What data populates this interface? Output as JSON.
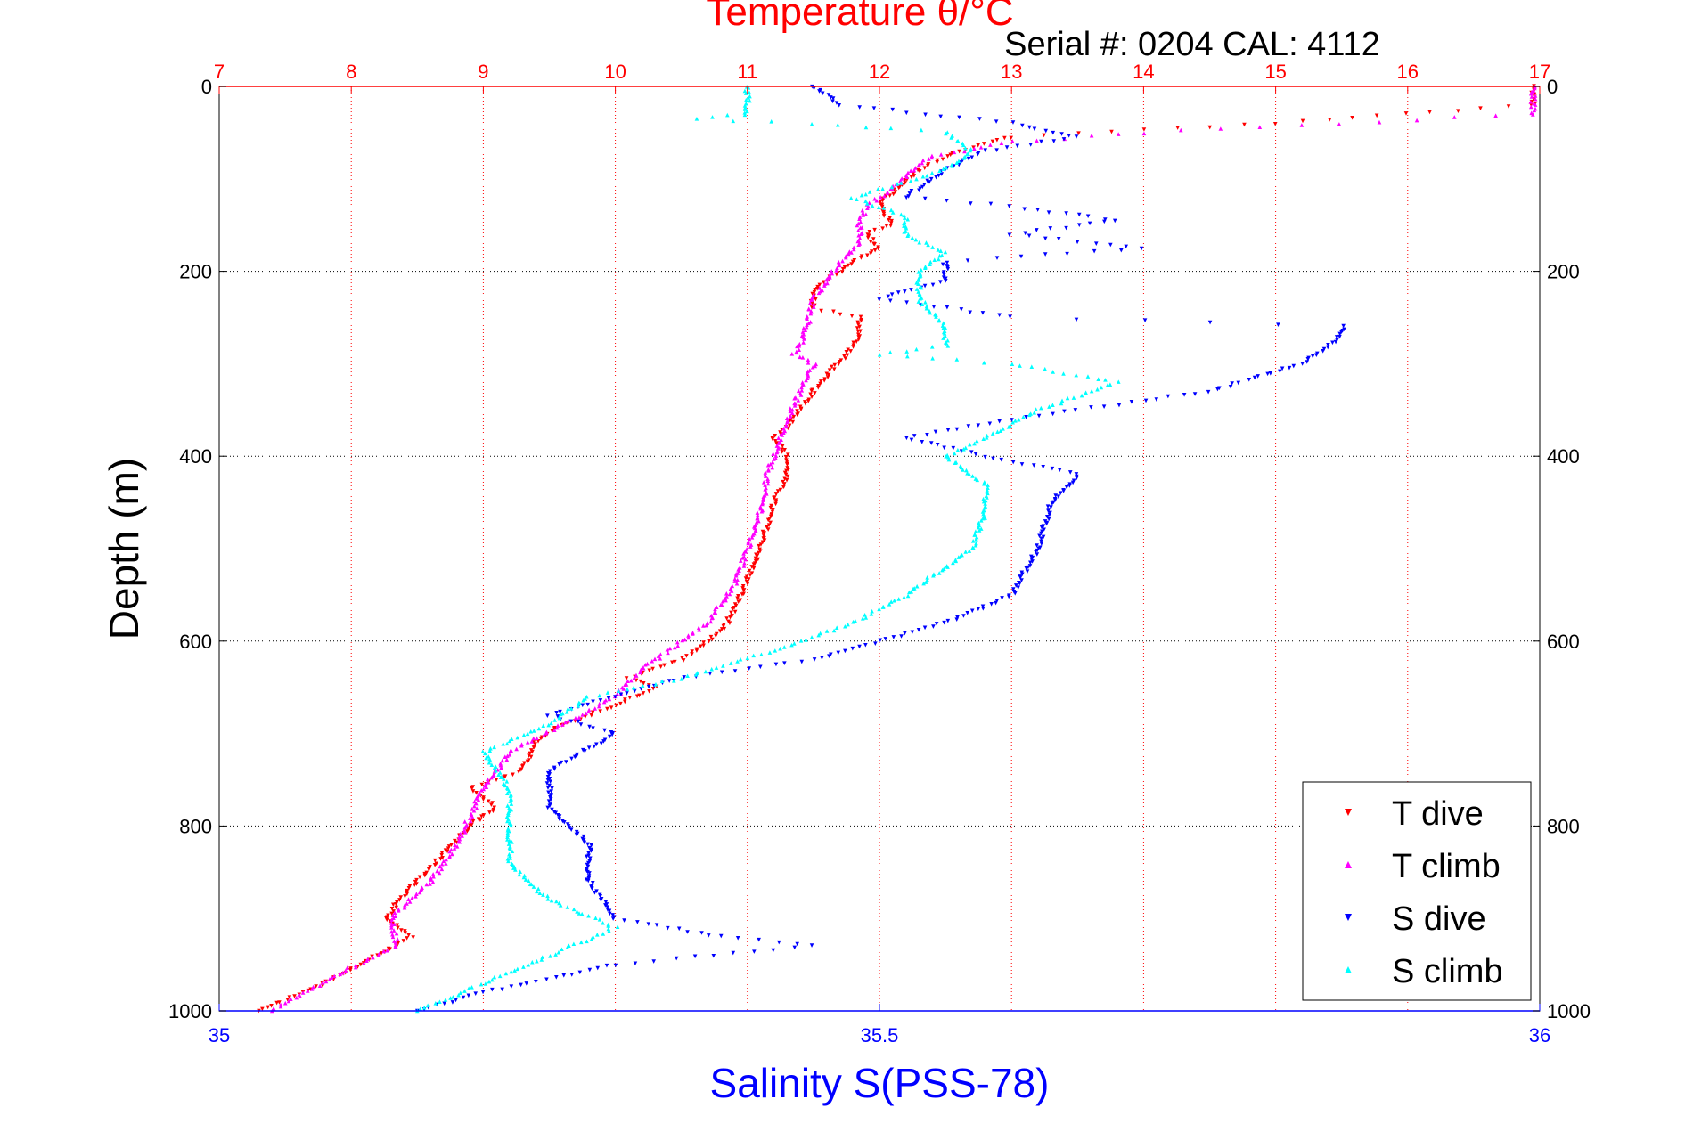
{
  "chart_data": {
    "type": "scatter",
    "title": "Temperature θ/°C",
    "subtitle": "Serial #: 0204  CAL: 4112",
    "ylabel": "Depth (m)",
    "xlabel_bottom": "Salinity S(PSS-78)",
    "xlabel_top": "Temperature θ/°C",
    "ylim": [
      0,
      1000
    ],
    "y_reversed": true,
    "y_ticks": [
      "0",
      "200",
      "400",
      "600",
      "800",
      "1000"
    ],
    "temp_axis": {
      "range": [
        7,
        17
      ],
      "ticks": [
        "7",
        "8",
        "9",
        "10",
        "11",
        "12",
        "13",
        "14",
        "15",
        "16",
        "17"
      ]
    },
    "sal_axis": {
      "range": [
        35,
        36
      ],
      "ticks": [
        "35",
        "35.5",
        "36"
      ]
    },
    "grid": true,
    "legend_position": "bottom-right",
    "colors": {
      "temp": "#ff0000",
      "sal": "#0000ff",
      "text": "#000000"
    },
    "series": [
      {
        "name": "T dive",
        "axis": "temp",
        "marker": "triangle-down",
        "color": "#ff0000",
        "points": [
          [
            0,
            16.95
          ],
          [
            20,
            16.95
          ],
          [
            40,
            15.0
          ],
          [
            55,
            13.0
          ],
          [
            70,
            12.6
          ],
          [
            90,
            12.3
          ],
          [
            110,
            12.15
          ],
          [
            125,
            12.0
          ],
          [
            140,
            12.05
          ],
          [
            150,
            12.1
          ],
          [
            160,
            11.9
          ],
          [
            175,
            12.0
          ],
          [
            190,
            11.8
          ],
          [
            200,
            11.7
          ],
          [
            220,
            11.5
          ],
          [
            240,
            11.5
          ],
          [
            250,
            11.85
          ],
          [
            270,
            11.85
          ],
          [
            290,
            11.75
          ],
          [
            320,
            11.55
          ],
          [
            350,
            11.4
          ],
          [
            370,
            11.3
          ],
          [
            380,
            11.2
          ],
          [
            400,
            11.3
          ],
          [
            420,
            11.3
          ],
          [
            450,
            11.2
          ],
          [
            500,
            11.1
          ],
          [
            550,
            10.95
          ],
          [
            580,
            10.85
          ],
          [
            600,
            10.7
          ],
          [
            620,
            10.5
          ],
          [
            640,
            10.1
          ],
          [
            650,
            10.3
          ],
          [
            670,
            10.0
          ],
          [
            690,
            9.6
          ],
          [
            710,
            9.4
          ],
          [
            740,
            9.3
          ],
          [
            760,
            8.9
          ],
          [
            780,
            9.1
          ],
          [
            800,
            8.9
          ],
          [
            830,
            8.7
          ],
          [
            860,
            8.5
          ],
          [
            900,
            8.25
          ],
          [
            920,
            8.45
          ],
          [
            940,
            8.2
          ],
          [
            970,
            7.8
          ],
          [
            1000,
            7.3
          ]
        ]
      },
      {
        "name": "T climb",
        "axis": "temp",
        "marker": "triangle-up",
        "color": "#ff00ff",
        "points": [
          [
            0,
            16.95
          ],
          [
            30,
            16.95
          ],
          [
            40,
            15.5
          ],
          [
            50,
            14.0
          ],
          [
            60,
            13.0
          ],
          [
            75,
            12.4
          ],
          [
            90,
            12.25
          ],
          [
            110,
            12.1
          ],
          [
            130,
            11.9
          ],
          [
            150,
            11.85
          ],
          [
            170,
            11.85
          ],
          [
            190,
            11.7
          ],
          [
            210,
            11.6
          ],
          [
            230,
            11.5
          ],
          [
            260,
            11.45
          ],
          [
            280,
            11.4
          ],
          [
            290,
            11.35
          ],
          [
            300,
            11.5
          ],
          [
            330,
            11.4
          ],
          [
            360,
            11.3
          ],
          [
            400,
            11.2
          ],
          [
            420,
            11.15
          ],
          [
            460,
            11.1
          ],
          [
            500,
            11.0
          ],
          [
            540,
            10.9
          ],
          [
            580,
            10.7
          ],
          [
            610,
            10.4
          ],
          [
            630,
            10.2
          ],
          [
            660,
            10.0
          ],
          [
            690,
            9.6
          ],
          [
            720,
            9.2
          ],
          [
            760,
            9.0
          ],
          [
            790,
            8.9
          ],
          [
            820,
            8.8
          ],
          [
            860,
            8.6
          ],
          [
            900,
            8.3
          ],
          [
            930,
            8.35
          ],
          [
            960,
            7.9
          ],
          [
            1000,
            7.4
          ]
        ]
      },
      {
        "name": "S dive",
        "axis": "sal",
        "marker": "triangle-down",
        "color": "#0000ff",
        "points": [
          [
            0,
            35.45
          ],
          [
            20,
            35.47
          ],
          [
            40,
            35.6
          ],
          [
            55,
            35.65
          ],
          [
            70,
            35.58
          ],
          [
            90,
            35.55
          ],
          [
            120,
            35.52
          ],
          [
            130,
            35.6
          ],
          [
            145,
            35.68
          ],
          [
            160,
            35.6
          ],
          [
            175,
            35.7
          ],
          [
            190,
            35.55
          ],
          [
            210,
            35.55
          ],
          [
            230,
            35.5
          ],
          [
            250,
            35.6
          ],
          [
            260,
            35.85
          ],
          [
            270,
            35.85
          ],
          [
            300,
            35.82
          ],
          [
            330,
            35.75
          ],
          [
            360,
            35.6
          ],
          [
            380,
            35.52
          ],
          [
            400,
            35.58
          ],
          [
            420,
            35.65
          ],
          [
            450,
            35.63
          ],
          [
            500,
            35.62
          ],
          [
            550,
            35.6
          ],
          [
            580,
            35.55
          ],
          [
            600,
            35.5
          ],
          [
            620,
            35.45
          ],
          [
            640,
            35.35
          ],
          [
            660,
            35.3
          ],
          [
            680,
            35.25
          ],
          [
            700,
            35.3
          ],
          [
            740,
            35.25
          ],
          [
            780,
            35.25
          ],
          [
            820,
            35.28
          ],
          [
            860,
            35.28
          ],
          [
            900,
            35.3
          ],
          [
            920,
            35.38
          ],
          [
            930,
            35.45
          ],
          [
            950,
            35.3
          ],
          [
            980,
            35.2
          ],
          [
            1000,
            35.15
          ]
        ]
      },
      {
        "name": "S climb",
        "axis": "sal",
        "marker": "triangle-up",
        "color": "#00ffff",
        "points": [
          [
            0,
            35.4
          ],
          [
            30,
            35.4
          ],
          [
            35,
            35.36
          ],
          [
            40,
            35.45
          ],
          [
            50,
            35.55
          ],
          [
            70,
            35.57
          ],
          [
            90,
            35.55
          ],
          [
            120,
            35.48
          ],
          [
            140,
            35.52
          ],
          [
            160,
            35.52
          ],
          [
            180,
            35.55
          ],
          [
            200,
            35.53
          ],
          [
            230,
            35.53
          ],
          [
            260,
            35.55
          ],
          [
            280,
            35.55
          ],
          [
            290,
            35.5
          ],
          [
            300,
            35.6
          ],
          [
            320,
            35.68
          ],
          [
            350,
            35.62
          ],
          [
            380,
            35.58
          ],
          [
            400,
            35.55
          ],
          [
            430,
            35.58
          ],
          [
            460,
            35.58
          ],
          [
            500,
            35.57
          ],
          [
            550,
            35.52
          ],
          [
            580,
            35.48
          ],
          [
            610,
            35.42
          ],
          [
            640,
            35.35
          ],
          [
            660,
            35.28
          ],
          [
            690,
            35.25
          ],
          [
            720,
            35.2
          ],
          [
            760,
            35.22
          ],
          [
            800,
            35.22
          ],
          [
            840,
            35.22
          ],
          [
            880,
            35.25
          ],
          [
            910,
            35.3
          ],
          [
            940,
            35.25
          ],
          [
            970,
            35.2
          ],
          [
            1000,
            35.15
          ]
        ]
      }
    ]
  }
}
